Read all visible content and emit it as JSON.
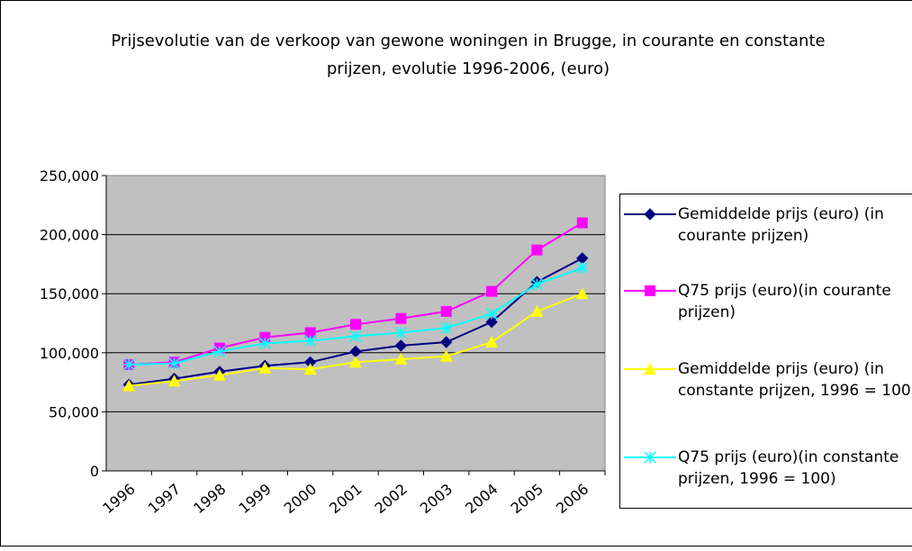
{
  "chart_data": {
    "type": "line",
    "title": "Prijsevolutie van de verkoop van gewone woningen in Brugge, in courante en constante prijzen, evolutie 1996-2006, (euro)",
    "categories": [
      "1996",
      "1997",
      "1998",
      "1999",
      "2000",
      "2001",
      "2002",
      "2003",
      "2004",
      "2005",
      "2006"
    ],
    "series": [
      {
        "name": "Gemiddelde prijs (euro) (in courante prijzen)",
        "color": "#000080",
        "marker": "diamond",
        "values": [
          73000,
          78000,
          84000,
          89000,
          92000,
          101000,
          106000,
          109000,
          126000,
          160000,
          180000
        ]
      },
      {
        "name": "Q75 prijs (euro)(in courante prijzen)",
        "color": "#ff00ff",
        "marker": "square",
        "values": [
          90000,
          92000,
          104000,
          113000,
          117000,
          124000,
          129000,
          135000,
          152000,
          187000,
          210000
        ]
      },
      {
        "name": "Gemiddelde prijs (euro) (in constante prijzen, 1996 = 100)",
        "color": "#ffff00",
        "marker": "triangle",
        "values": [
          72000,
          76000,
          81000,
          87000,
          86000,
          92000,
          94500,
          97000,
          109000,
          135000,
          150000
        ]
      },
      {
        "name": "Q75 prijs (euro)(in constante prijzen, 1996 = 100)",
        "color": "#00ffff",
        "marker": "star",
        "values": [
          90000,
          91000,
          101000,
          108000,
          110000,
          114000,
          117000,
          121000,
          133000,
          158000,
          172000
        ]
      }
    ],
    "ylim": [
      0,
      250000
    ],
    "yticks": [
      0,
      {
        "value": 50000,
        "label": "50,000"
      },
      {
        "value": 100000,
        "label": "100,000"
      },
      {
        "value": 150000,
        "label": "150,000"
      },
      {
        "value": 200000,
        "label": "200,000"
      },
      {
        "value": 250000,
        "label": "250,000"
      }
    ],
    "grid": true
  }
}
